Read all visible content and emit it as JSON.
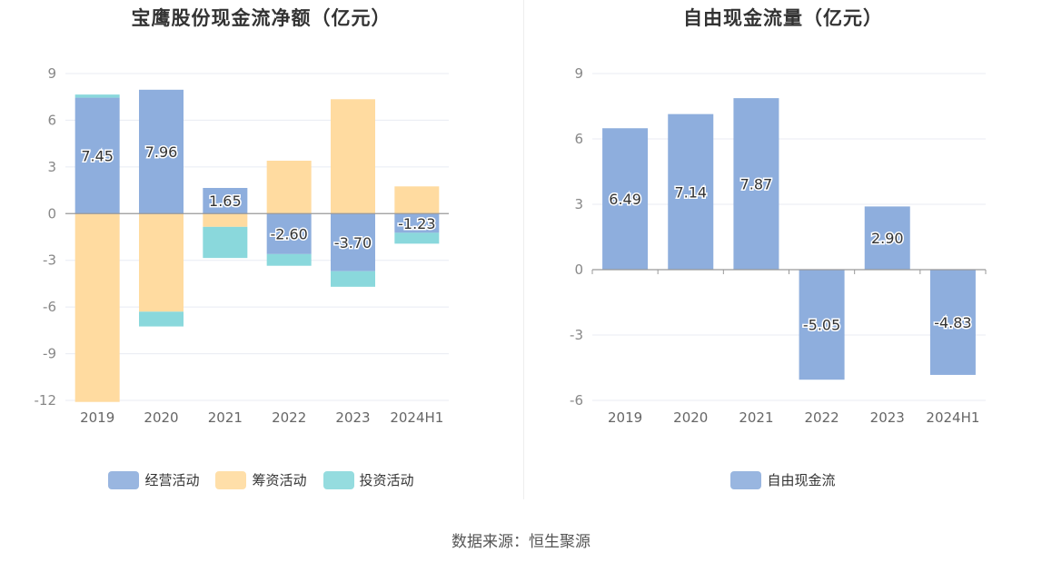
{
  "chart_data": [
    {
      "type": "bar",
      "stacked": true,
      "title": "宝鹰股份现金流净额（亿元）",
      "categories": [
        "2019",
        "2020",
        "2021",
        "2022",
        "2023",
        "2024H1"
      ],
      "series": [
        {
          "name": "经营活动",
          "color": "#8eaedd",
          "values": [
            7.45,
            7.96,
            1.65,
            -2.6,
            -3.7,
            -1.23
          ],
          "labels": [
            "7.45",
            "7.96",
            "1.65",
            "-2.60",
            "-3.70",
            "-1.23"
          ]
        },
        {
          "name": "筹资活动",
          "color": "#ffdba0",
          "values": [
            -12.1,
            -6.3,
            -0.85,
            3.4,
            7.35,
            1.75
          ]
        },
        {
          "name": "投资活动",
          "color": "#8ad8dc",
          "values": [
            0.2,
            -0.95,
            -2.0,
            -0.75,
            -1.0,
            -0.7
          ]
        }
      ],
      "yticks": [
        "9",
        "6",
        "3",
        "0",
        "-3",
        "-6",
        "-9",
        "-12"
      ],
      "ylim": [
        -12,
        9
      ],
      "grid": true,
      "legend": "bottom"
    },
    {
      "type": "bar",
      "title": "自由现金流量（亿元）",
      "categories": [
        "2019",
        "2020",
        "2021",
        "2022",
        "2023",
        "2024H1"
      ],
      "series": [
        {
          "name": "自由现金流",
          "color": "#8eaedd",
          "values": [
            6.49,
            7.14,
            7.87,
            -5.05,
            2.9,
            -4.83
          ],
          "labels": [
            "6.49",
            "7.14",
            "7.87",
            "-5.05",
            "2.90",
            "-4.83"
          ]
        }
      ],
      "yticks": [
        "9",
        "6",
        "3",
        "0",
        "-3",
        "-6"
      ],
      "ylim": [
        -6,
        9
      ],
      "grid": true,
      "legend": "bottom"
    }
  ],
  "source": "数据来源：恒生聚源"
}
